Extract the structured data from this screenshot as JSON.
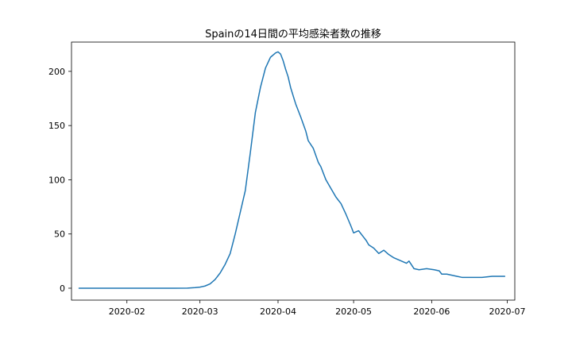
{
  "chart_data": {
    "type": "line",
    "title": "Spainの14日間の平均感染者数の推移",
    "xlabel": "",
    "ylabel": "",
    "ylim": [
      -11,
      227
    ],
    "xlim": [
      "2020-01-10",
      "2020-07-04"
    ],
    "grid": false,
    "line_color": "#1f77b4",
    "x_ticks": [
      {
        "date": "2020-02-01",
        "label": "2020-02"
      },
      {
        "date": "2020-03-01",
        "label": "2020-03"
      },
      {
        "date": "2020-04-01",
        "label": "2020-04"
      },
      {
        "date": "2020-05-01",
        "label": "2020-05"
      },
      {
        "date": "2020-06-01",
        "label": "2020-06"
      },
      {
        "date": "2020-07-01",
        "label": "2020-07"
      }
    ],
    "y_ticks": [
      {
        "value": 0,
        "label": "0"
      },
      {
        "value": 50,
        "label": "50"
      },
      {
        "value": 100,
        "label": "100"
      },
      {
        "value": 150,
        "label": "150"
      },
      {
        "value": 200,
        "label": "200"
      }
    ],
    "series": [
      {
        "name": "",
        "x": [
          "2020-01-13",
          "2020-02-01",
          "2020-02-20",
          "2020-02-25",
          "2020-02-28",
          "2020-03-01",
          "2020-03-03",
          "2020-03-05",
          "2020-03-07",
          "2020-03-09",
          "2020-03-11",
          "2020-03-13",
          "2020-03-15",
          "2020-03-17",
          "2020-03-19",
          "2020-03-21",
          "2020-03-23",
          "2020-03-25",
          "2020-03-27",
          "2020-03-29",
          "2020-03-31",
          "2020-04-01",
          "2020-04-02",
          "2020-04-03",
          "2020-04-04",
          "2020-04-05",
          "2020-04-06",
          "2020-04-08",
          "2020-04-10",
          "2020-04-12",
          "2020-04-13",
          "2020-04-15",
          "2020-04-17",
          "2020-04-18",
          "2020-04-20",
          "2020-04-22",
          "2020-04-24",
          "2020-04-26",
          "2020-04-28",
          "2020-04-30",
          "2020-05-01",
          "2020-05-03",
          "2020-05-05",
          "2020-05-06",
          "2020-05-07",
          "2020-05-09",
          "2020-05-11",
          "2020-05-13",
          "2020-05-15",
          "2020-05-17",
          "2020-05-19",
          "2020-05-21",
          "2020-05-22",
          "2020-05-23",
          "2020-05-25",
          "2020-05-27",
          "2020-05-30",
          "2020-06-02",
          "2020-06-04",
          "2020-06-05",
          "2020-06-07",
          "2020-06-09",
          "2020-06-11",
          "2020-06-13",
          "2020-06-15",
          "2020-06-18",
          "2020-06-21",
          "2020-06-25",
          "2020-06-30"
        ],
        "y": [
          0,
          0,
          0,
          0.1,
          0.5,
          1,
          2,
          4,
          8,
          14,
          22,
          32,
          50,
          70,
          90,
          125,
          162,
          185,
          203,
          213,
          217,
          218,
          216,
          210,
          202,
          195,
          185,
          170,
          158,
          145,
          136,
          129,
          116,
          112,
          100,
          92,
          84,
          78,
          68,
          57,
          51,
          53,
          47,
          44,
          40,
          37,
          32,
          35,
          31,
          28,
          26,
          24,
          23,
          25,
          18,
          17,
          18,
          17,
          16,
          13,
          13,
          12,
          11,
          10,
          10,
          10,
          10,
          11,
          11
        ]
      }
    ]
  }
}
